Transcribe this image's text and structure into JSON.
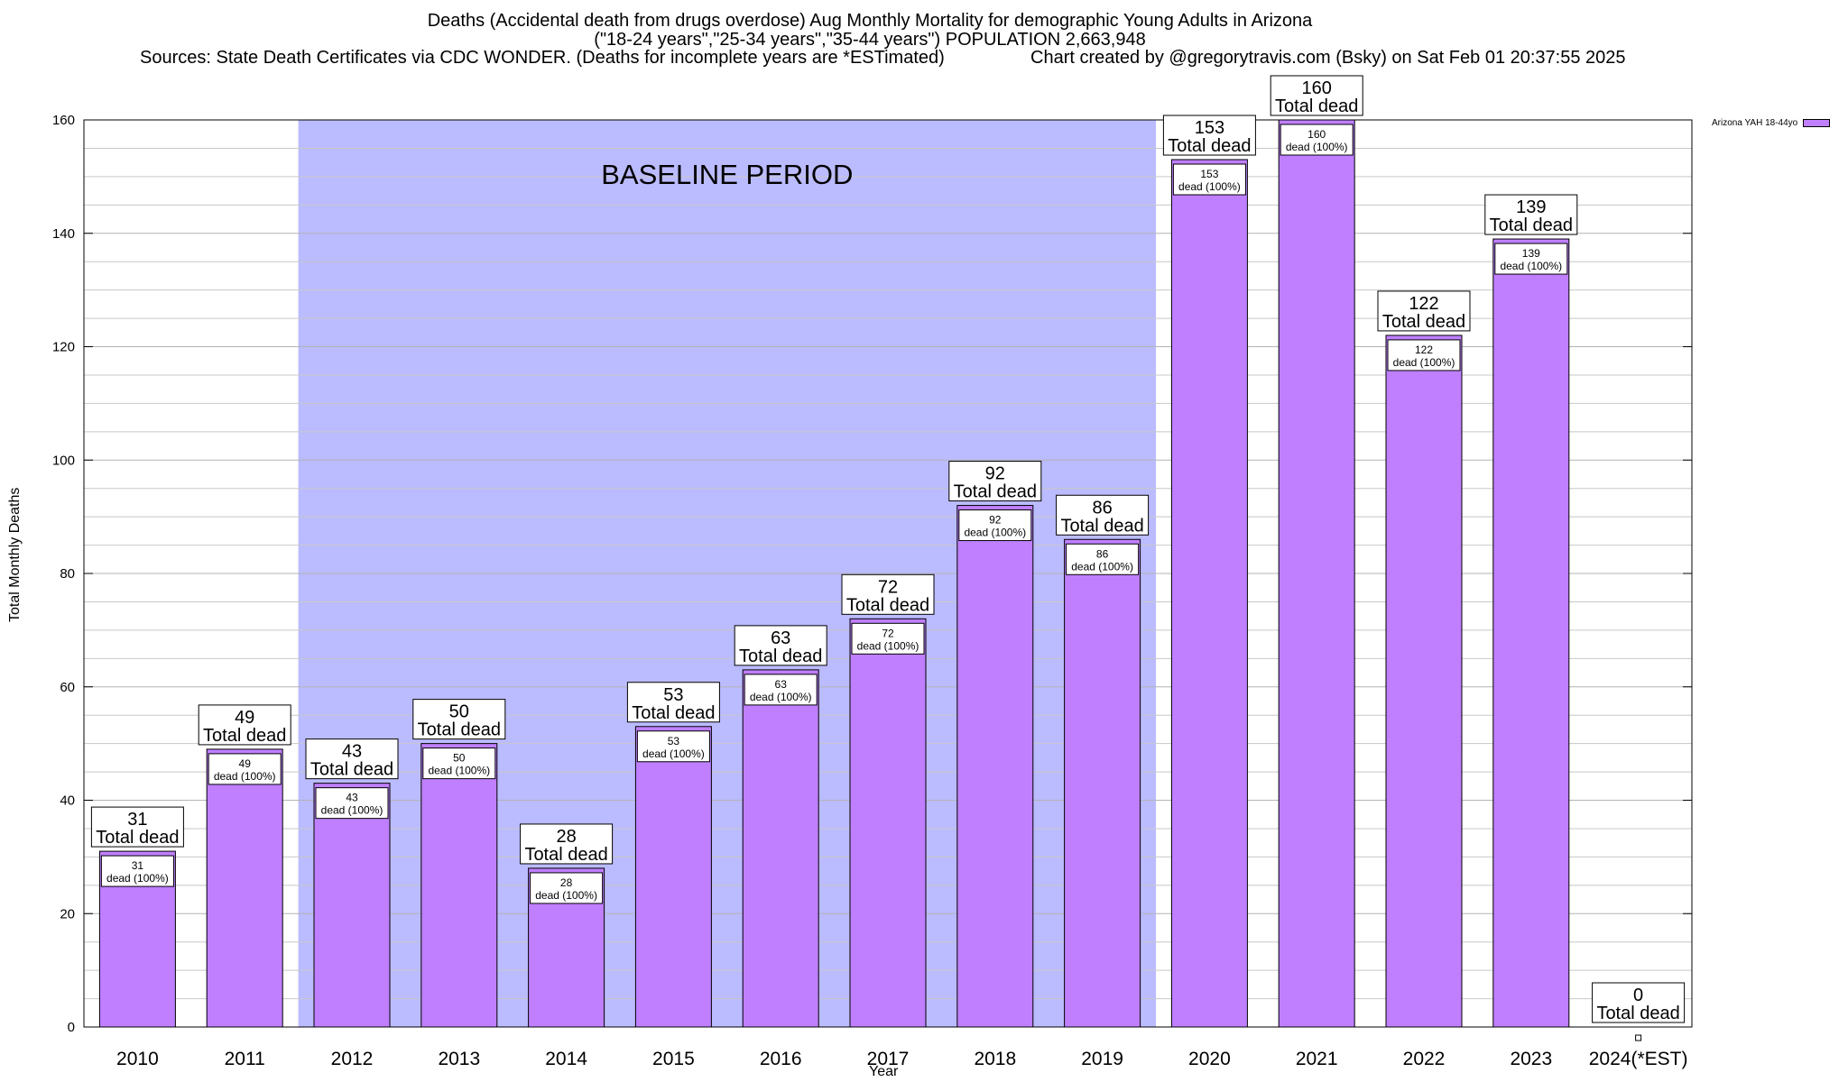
{
  "chart_data": {
    "type": "bar",
    "title_lines": [
      "Deaths (Accidental death from drugs overdose) Aug Monthly Mortality for demographic Young Adults in Arizona",
      "(\"18-24 years\",\"25-34 years\",\"35-44 years\") POPULATION 2,663,948",
      "Sources: State Death Certificates via CDC WONDER. (Deaths for incomplete years are *ESTimated)",
      "Chart created by @gregorytravis.com (Bsky) on Sat Feb 01 20:37:55 2025"
    ],
    "xlabel": "Year",
    "ylabel": "Total Monthly Deaths",
    "ylim": [
      0,
      160
    ],
    "yticks": [
      0,
      20,
      40,
      60,
      80,
      100,
      120,
      140,
      160
    ],
    "categories": [
      "2010",
      "2011",
      "2012",
      "2013",
      "2014",
      "2015",
      "2016",
      "2017",
      "2018",
      "2019",
      "2020",
      "2021",
      "2022",
      "2023",
      "2024(*EST)"
    ],
    "series": [
      {
        "name": "Arizona YAH 18-44yo",
        "values": [
          31,
          49,
          43,
          50,
          28,
          53,
          63,
          72,
          92,
          86,
          153,
          160,
          122,
          139,
          0
        ]
      }
    ],
    "total_label": "Total dead",
    "inner_label": "dead (100%)",
    "baseline": {
      "label": "BASELINE PERIOD",
      "start": "2012",
      "end": "2019"
    },
    "legend": {
      "label": "Arizona YAH 18-44yo",
      "position": "top-right"
    },
    "colors": {
      "bar": "#bf7fff",
      "baseline": "#bbbbff",
      "grid": "#c8c8c8"
    }
  }
}
